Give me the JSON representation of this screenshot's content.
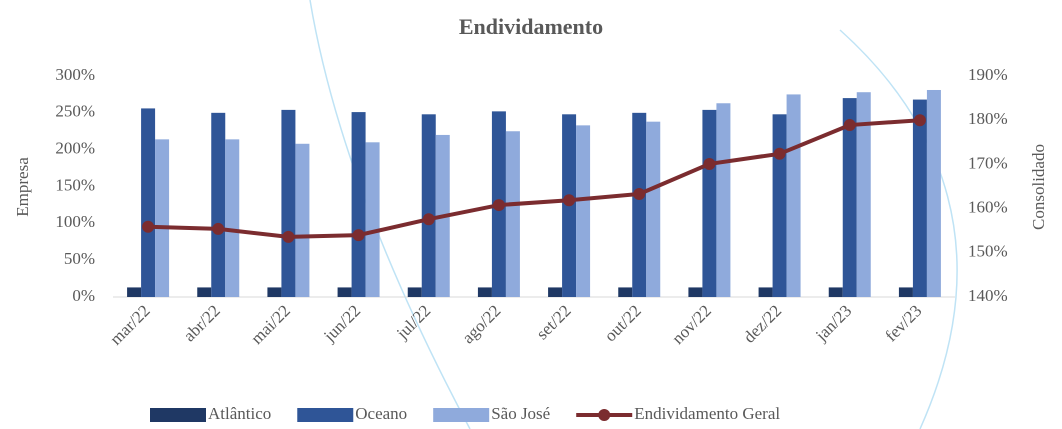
{
  "chart_data": {
    "type": "bar_line",
    "title": "Endividamento",
    "categories": [
      "mar/22",
      "abr/22",
      "mai/22",
      "jun/22",
      "jul/22",
      "ago/22",
      "set/22",
      "out/22",
      "nov/22",
      "dez/22",
      "jan/23",
      "fev/23"
    ],
    "series": [
      {
        "name": "Atlântico",
        "color": "#1f3864",
        "type": "bar",
        "values": [
          13,
          13,
          13,
          13,
          13,
          13,
          13,
          13,
          13,
          13,
          13,
          13
        ]
      },
      {
        "name": "Oceano",
        "color": "#2f5597",
        "type": "bar",
        "values": [
          256,
          250,
          254,
          251,
          248,
          252,
          248,
          250,
          254,
          248,
          270,
          268
        ]
      },
      {
        "name": "São  José",
        "color": "#8faadc",
        "type": "bar",
        "values": [
          214,
          214,
          208,
          210,
          220,
          225,
          233,
          238,
          263,
          275,
          278,
          281
        ]
      },
      {
        "name": "Endividamento Geral",
        "color": "#7b2c2f",
        "type": "line",
        "axis": "y2",
        "values": [
          155.9,
          155.4,
          153.6,
          154,
          157.6,
          160.8,
          161.9,
          163.3,
          170.1,
          172.4,
          178.9,
          180
        ]
      }
    ],
    "ylabel": "Empresa",
    "y2label": "Consolidado",
    "ylim": [
      0,
      300
    ],
    "yticks": [
      {
        "value": 0,
        "label": "0%"
      },
      {
        "value": 50,
        "label": "50%"
      },
      {
        "value": 100,
        "label": "100%"
      },
      {
        "value": 150,
        "label": "150%"
      },
      {
        "value": 200,
        "label": "200%"
      },
      {
        "value": 250,
        "label": "250%"
      },
      {
        "value": 300,
        "label": "300%"
      }
    ],
    "y2lim": [
      140,
      190
    ],
    "y2ticks": [
      {
        "value": 140,
        "label": "140%"
      },
      {
        "value": 150,
        "label": "150%"
      },
      {
        "value": 160,
        "label": "160%"
      },
      {
        "value": 170,
        "label": "170%"
      },
      {
        "value": 180,
        "label": "180%"
      },
      {
        "value": 190,
        "label": "190%"
      }
    ],
    "legend": "bottom"
  }
}
